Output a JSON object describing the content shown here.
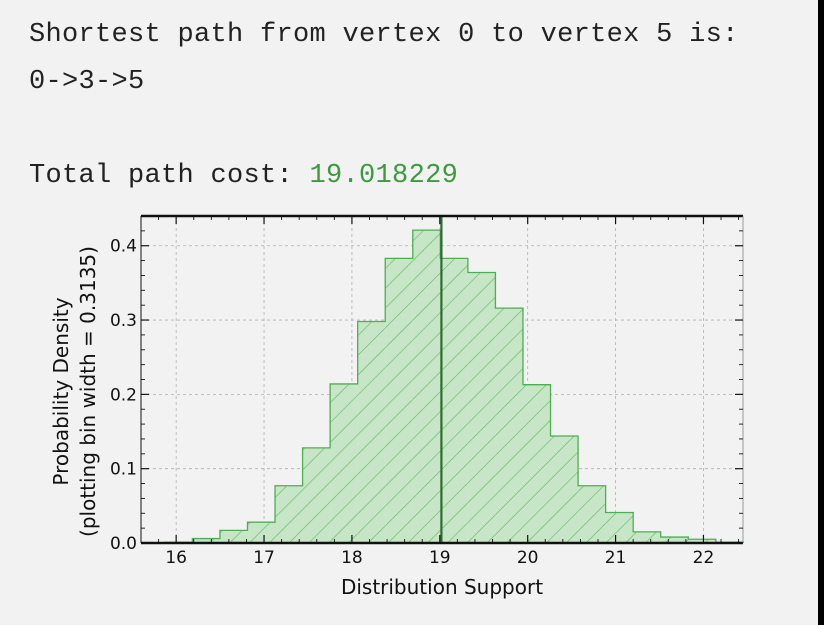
{
  "header": {
    "line1": "Shortest path from vertex 0 to vertex 5 is:",
    "path": "0->3->5",
    "cost_label": "Total path cost: ",
    "cost_value": "19.018229"
  },
  "colors": {
    "panel_bg": "#f2f2f2",
    "hist_fill": "#c7e5c7",
    "hist_edge": "#4caf50",
    "hatch": "#5cb85c",
    "marker_line": "#2e6b2e",
    "cost_text": "#3c9a3c"
  },
  "chart_data": {
    "type": "bar",
    "style": "step-histogram with diagonal hatch",
    "xlabel": "Distribution Support",
    "ylabel_line1": "Probability Density",
    "ylabel_line2": "(plotting bin width = 0.3135)",
    "xlim": [
      15.6,
      22.45
    ],
    "ylim": [
      0,
      0.44
    ],
    "xticks": [
      16,
      17,
      18,
      19,
      20,
      21,
      22
    ],
    "yticks": [
      0.0,
      0.1,
      0.2,
      0.3,
      0.4
    ],
    "ytick_labels": [
      "0.0",
      "0.1",
      "0.2",
      "0.3",
      "0.4"
    ],
    "grid": true,
    "bin_width": 0.3135,
    "bin_start": 15.871,
    "values": [
      0.001,
      0.006,
      0.017,
      0.028,
      0.077,
      0.128,
      0.214,
      0.298,
      0.383,
      0.421,
      0.383,
      0.364,
      0.316,
      0.213,
      0.144,
      0.077,
      0.041,
      0.015,
      0.008,
      0.005,
      0.001
    ],
    "vline_x": 19.018229
  }
}
